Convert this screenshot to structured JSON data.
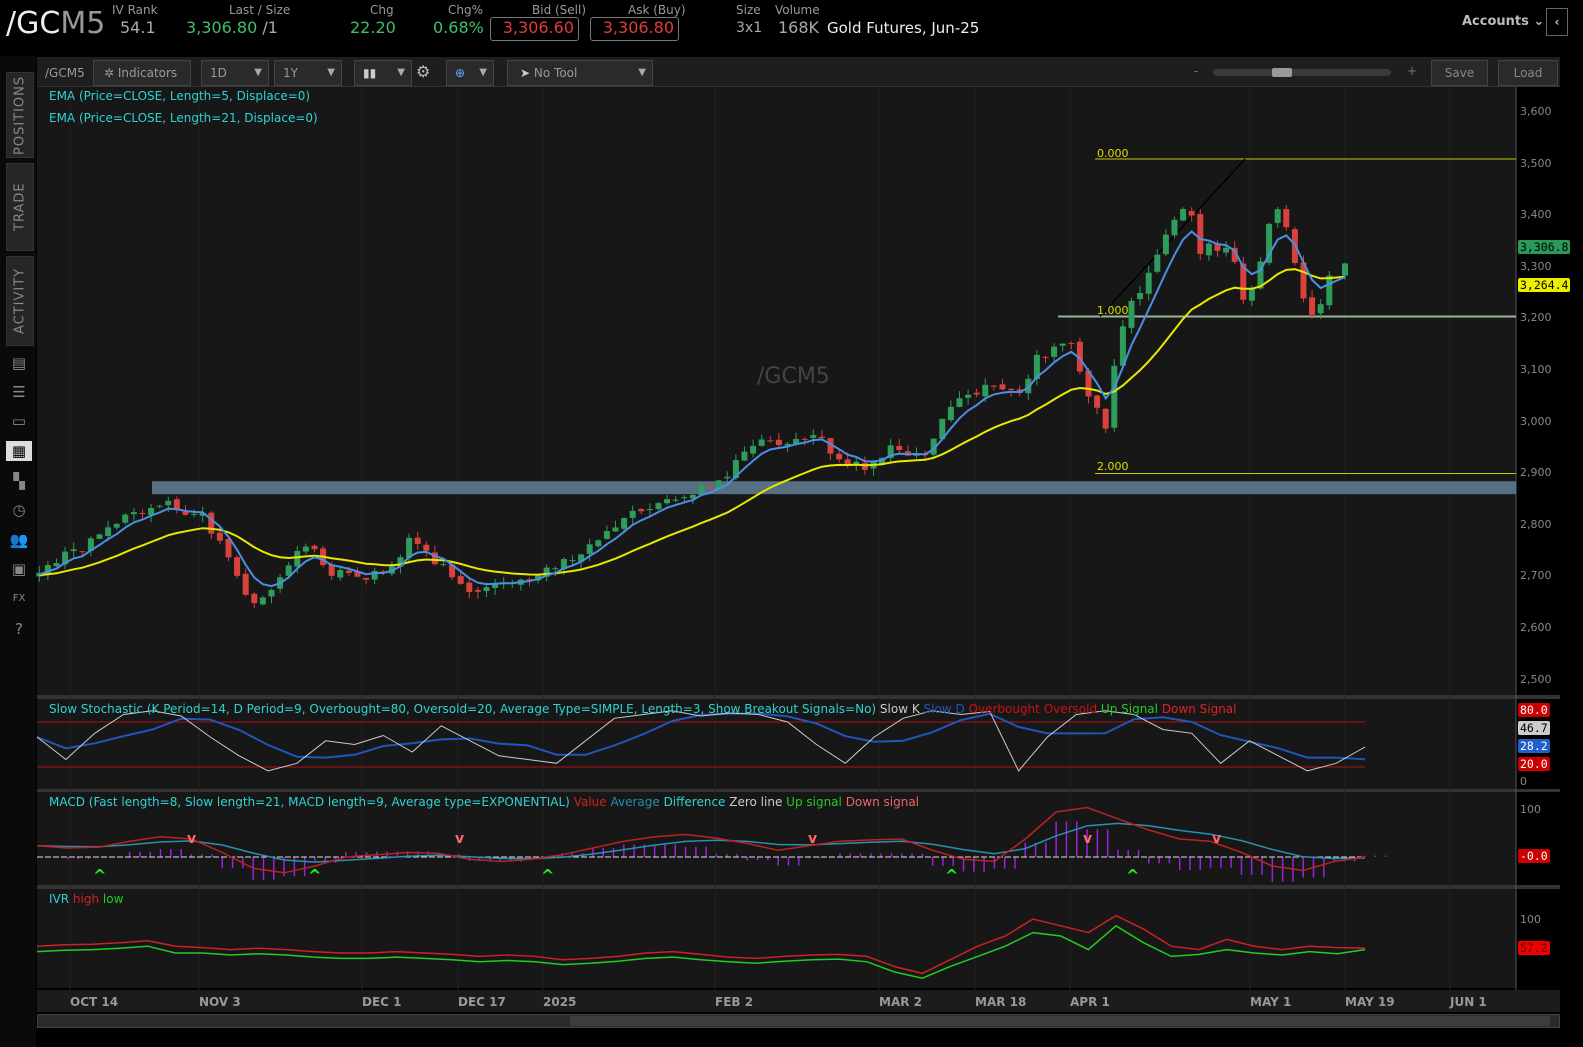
{
  "header": {
    "symbol_main": "/GC",
    "symbol_suffix": "M5",
    "iv_rank": {
      "label": "IV Rank",
      "value": "54.1"
    },
    "last": {
      "label": "Last / Size",
      "value": "3,306.80",
      "size": "/1"
    },
    "chg": {
      "label": "Chg",
      "value": "22.20"
    },
    "chg_pct": {
      "label": "Chg%",
      "value": "0.68%"
    },
    "bid": {
      "label": "Bid (Sell)",
      "value": "3,306.60"
    },
    "ask": {
      "label": "Ask (Buy)",
      "value": "3,306.80"
    },
    "size": {
      "label": "Size",
      "value": "3x1"
    },
    "volume": {
      "label": "Volume",
      "value": "168K"
    },
    "description": "Gold Futures, Jun-25",
    "accounts": "Accounts"
  },
  "sidebar": {
    "tabs": [
      "POSITIONS",
      "TRADE",
      "ACTIVITY"
    ],
    "icons": [
      "news-icon",
      "watchlist-icon",
      "tv-icon",
      "charts-icon",
      "grid-icon",
      "history-icon",
      "community-icon",
      "calendar-icon",
      "fx-icon",
      "help-icon"
    ]
  },
  "toolbar": {
    "symbol": "/GCM5",
    "indicators": "Indicators",
    "aggregation": "1D",
    "timeframe": "1Y",
    "drawing_tool": "No Tool",
    "zoom_minus": "-",
    "zoom_plus": "+",
    "zoom_level": 0.42,
    "save": "Save",
    "load": "Load"
  },
  "chart": {
    "watermark": "/GCM5",
    "legend": [
      "EMA (Price=CLOSE, Length=5, Displace=0)",
      "EMA (Price=CLOSE, Length=21, Displace=0)"
    ],
    "price_axis": [
      "3,600",
      "3,500",
      "3,400",
      "3,300",
      "3,200",
      "3,100",
      "3,000",
      "2,900",
      "2,800",
      "2,700",
      "2,600",
      "2,500"
    ],
    "last_price_tag": "3,306.8",
    "ema21_tag": "3,264.4",
    "fib_labels": [
      "0.000",
      "1.000",
      "2.000"
    ],
    "fib_levels": [
      3509,
      3204,
      2900
    ],
    "support_zone": [
      2860,
      2885
    ],
    "colors": {
      "up": "#2e9d5c",
      "down": "#d8413c",
      "ema5": "#4a90e2",
      "ema21": "#e8e800",
      "fib": "#c8c800",
      "support": "#6c8ea8"
    },
    "x_ticks": [
      "OCT 14",
      "NOV 3",
      "DEC 1",
      "DEC 17",
      "2025",
      "FEB 2",
      "MAR 2",
      "MAR 18",
      "APR 1",
      "MAY 1",
      "MAY 19",
      "JUN 1"
    ]
  },
  "chart_data": {
    "type": "candlestick",
    "symbol": "/GCM5",
    "approx_closes": [
      {
        "date": "2024-10-09",
        "close": 2713
      },
      {
        "date": "2024-10-17",
        "close": 2762
      },
      {
        "date": "2024-10-23",
        "close": 2814
      },
      {
        "date": "2024-10-30",
        "close": 2849
      },
      {
        "date": "2024-11-05",
        "close": 2810
      },
      {
        "date": "2024-11-11",
        "close": 2694
      },
      {
        "date": "2024-11-14",
        "close": 2632
      },
      {
        "date": "2024-11-22",
        "close": 2771
      },
      {
        "date": "2024-11-27",
        "close": 2703
      },
      {
        "date": "2024-12-06",
        "close": 2703
      },
      {
        "date": "2024-12-10",
        "close": 2781
      },
      {
        "date": "2024-12-18",
        "close": 2674
      },
      {
        "date": "2024-12-30",
        "close": 2688
      },
      {
        "date": "2025-01-08",
        "close": 2742
      },
      {
        "date": "2025-01-17",
        "close": 2810
      },
      {
        "date": "2025-02-03",
        "close": 2878
      },
      {
        "date": "2025-02-11",
        "close": 2965
      },
      {
        "date": "2025-02-14",
        "close": 2945
      },
      {
        "date": "2025-02-19",
        "close": 2975
      },
      {
        "date": "2025-02-28",
        "close": 2907
      },
      {
        "date": "2025-03-05",
        "close": 2955
      },
      {
        "date": "2025-03-10",
        "close": 2936
      },
      {
        "date": "2025-03-13",
        "close": 3013
      },
      {
        "date": "2025-03-19",
        "close": 3071
      },
      {
        "date": "2025-03-24",
        "close": 3052
      },
      {
        "date": "2025-03-27",
        "close": 3120
      },
      {
        "date": "2025-04-01",
        "close": 3168
      },
      {
        "date": "2025-04-03",
        "close": 3081
      },
      {
        "date": "2025-04-07",
        "close": 2984
      },
      {
        "date": "2025-04-09",
        "close": 3168
      },
      {
        "date": "2025-04-16",
        "close": 3342
      },
      {
        "date": "2025-04-21",
        "close": 3430
      },
      {
        "date": "2025-04-22",
        "close": 3313
      },
      {
        "date": "2025-04-24",
        "close": 3342
      },
      {
        "date": "2025-04-28",
        "close": 3323
      },
      {
        "date": "2025-04-30",
        "close": 3236
      },
      {
        "date": "2025-05-02",
        "close": 3275
      },
      {
        "date": "2025-05-06",
        "close": 3430
      },
      {
        "date": "2025-05-09",
        "close": 3333
      },
      {
        "date": "2025-05-12",
        "close": 3197
      },
      {
        "date": "2025-05-14",
        "close": 3217
      },
      {
        "date": "2025-05-16",
        "close": 3284
      },
      {
        "date": "2025-05-19",
        "close": 3306.8
      }
    ],
    "ylim": [
      2470,
      3640
    ]
  },
  "stochastic": {
    "legend": "Slow Stochastic (K Period=14, D Period=9, Overbought=80, Oversold=20, Average Type=SIMPLE, Length=3, Show Breakout Signals=No)",
    "series_labels": [
      "Slow K",
      "Slow D",
      "Overbought",
      "Oversold",
      "Up Signal",
      "Down Signal"
    ],
    "series_colors": [
      "#cccccc",
      "#2255bb",
      "#cc1111",
      "#cc1111",
      "#22cc22",
      "#dd2222"
    ],
    "axis": {
      "overbought": "80.0",
      "k": "46.7",
      "d": "28.2",
      "oversold": "20.0",
      "zero": "0"
    },
    "slow_k": [
      60,
      30,
      65,
      90,
      95,
      88,
      60,
      35,
      15,
      25,
      55,
      50,
      62,
      40,
      75,
      55,
      35,
      30,
      25,
      55,
      85,
      90,
      95,
      88,
      92,
      90,
      80,
      50,
      25,
      60,
      85,
      95,
      90,
      94,
      15,
      60,
      90,
      95,
      90,
      70,
      65,
      25,
      55,
      35,
      15,
      25,
      46.7
    ]
  },
  "macd": {
    "legend": "MACD (Fast length=8, Slow length=21, MACD length=9, Average type=EXPONENTIAL)",
    "series_labels": [
      "Value",
      "Average",
      "Difference",
      "Zero line",
      "Up signal",
      "Down signal"
    ],
    "series_colors": [
      "#cc2222",
      "#2a8fb0",
      "#2fd3d3",
      "#cccccc",
      "#22cc22",
      "#ee6666"
    ],
    "axis": {
      "top": "100",
      "value": "-0.0"
    },
    "value": [
      25,
      20,
      22,
      35,
      45,
      40,
      10,
      -25,
      -35,
      -20,
      0,
      5,
      10,
      8,
      -5,
      -10,
      -5,
      5,
      20,
      35,
      45,
      50,
      42,
      30,
      15,
      25,
      35,
      38,
      40,
      15,
      -5,
      -10,
      40,
      100,
      110,
      85,
      60,
      40,
      35,
      10,
      -20,
      -30,
      -10,
      0
    ]
  },
  "ivr": {
    "legend": "IVR",
    "series_labels": [
      "high",
      "low"
    ],
    "series_colors": [
      "#cc2222",
      "#22cc22"
    ],
    "axis": {
      "top": "100",
      "value": "57.2"
    },
    "high": [
      60,
      62,
      63,
      65,
      68,
      60,
      58,
      55,
      57,
      55,
      52,
      50,
      50,
      52,
      50,
      48,
      45,
      47,
      45,
      40,
      42,
      45,
      50,
      52,
      48,
      44,
      42,
      45,
      47,
      48,
      45,
      30,
      20,
      40,
      60,
      75,
      100,
      90,
      80,
      105,
      85,
      60,
      55,
      70,
      60,
      55,
      60,
      58,
      57.2
    ],
    "low": [
      52,
      54,
      55,
      57,
      60,
      50,
      50,
      47,
      49,
      47,
      44,
      42,
      42,
      44,
      42,
      40,
      37,
      39,
      37,
      33,
      35,
      38,
      42,
      44,
      40,
      37,
      35,
      38,
      40,
      41,
      37,
      22,
      13,
      30,
      45,
      60,
      80,
      75,
      55,
      90,
      65,
      45,
      48,
      55,
      50,
      47,
      52,
      49,
      55
    ]
  }
}
